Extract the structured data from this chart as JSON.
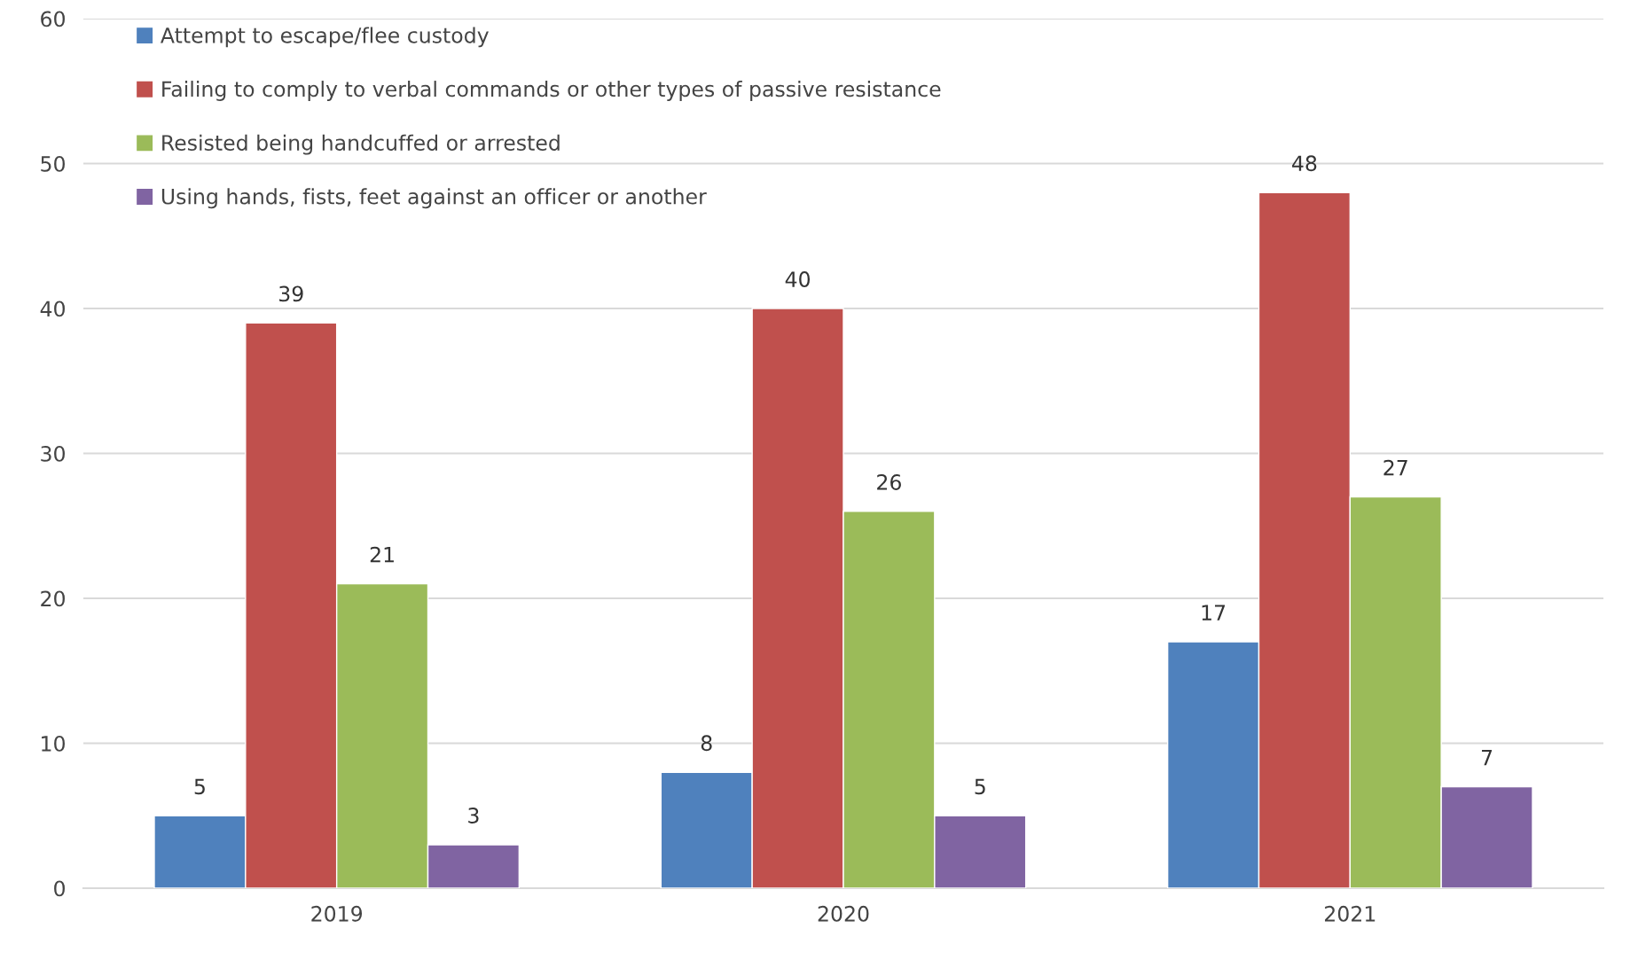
{
  "chart_data": {
    "type": "bar",
    "categories": [
      "2019",
      "2020",
      "2021"
    ],
    "series": [
      {
        "name": "Attempt to escape/flee custody",
        "color": "#4f81bd",
        "values": [
          5,
          8,
          17
        ]
      },
      {
        "name": "Failing to comply to verbal commands or other types of passive resistance",
        "color": "#c0504d",
        "values": [
          39,
          40,
          48
        ]
      },
      {
        "name": "Resisted being handcuffed or arrested",
        "color": "#9bbb59",
        "values": [
          21,
          26,
          27
        ]
      },
      {
        "name": "Using hands, fists, feet against an officer or another",
        "color": "#8064a2",
        "values": [
          3,
          5,
          7
        ]
      }
    ],
    "ylim": [
      0,
      60
    ],
    "yticks": [
      0,
      10,
      20,
      30,
      40,
      50,
      60
    ],
    "grid": "y",
    "legend": "top left",
    "data_labels": true
  }
}
